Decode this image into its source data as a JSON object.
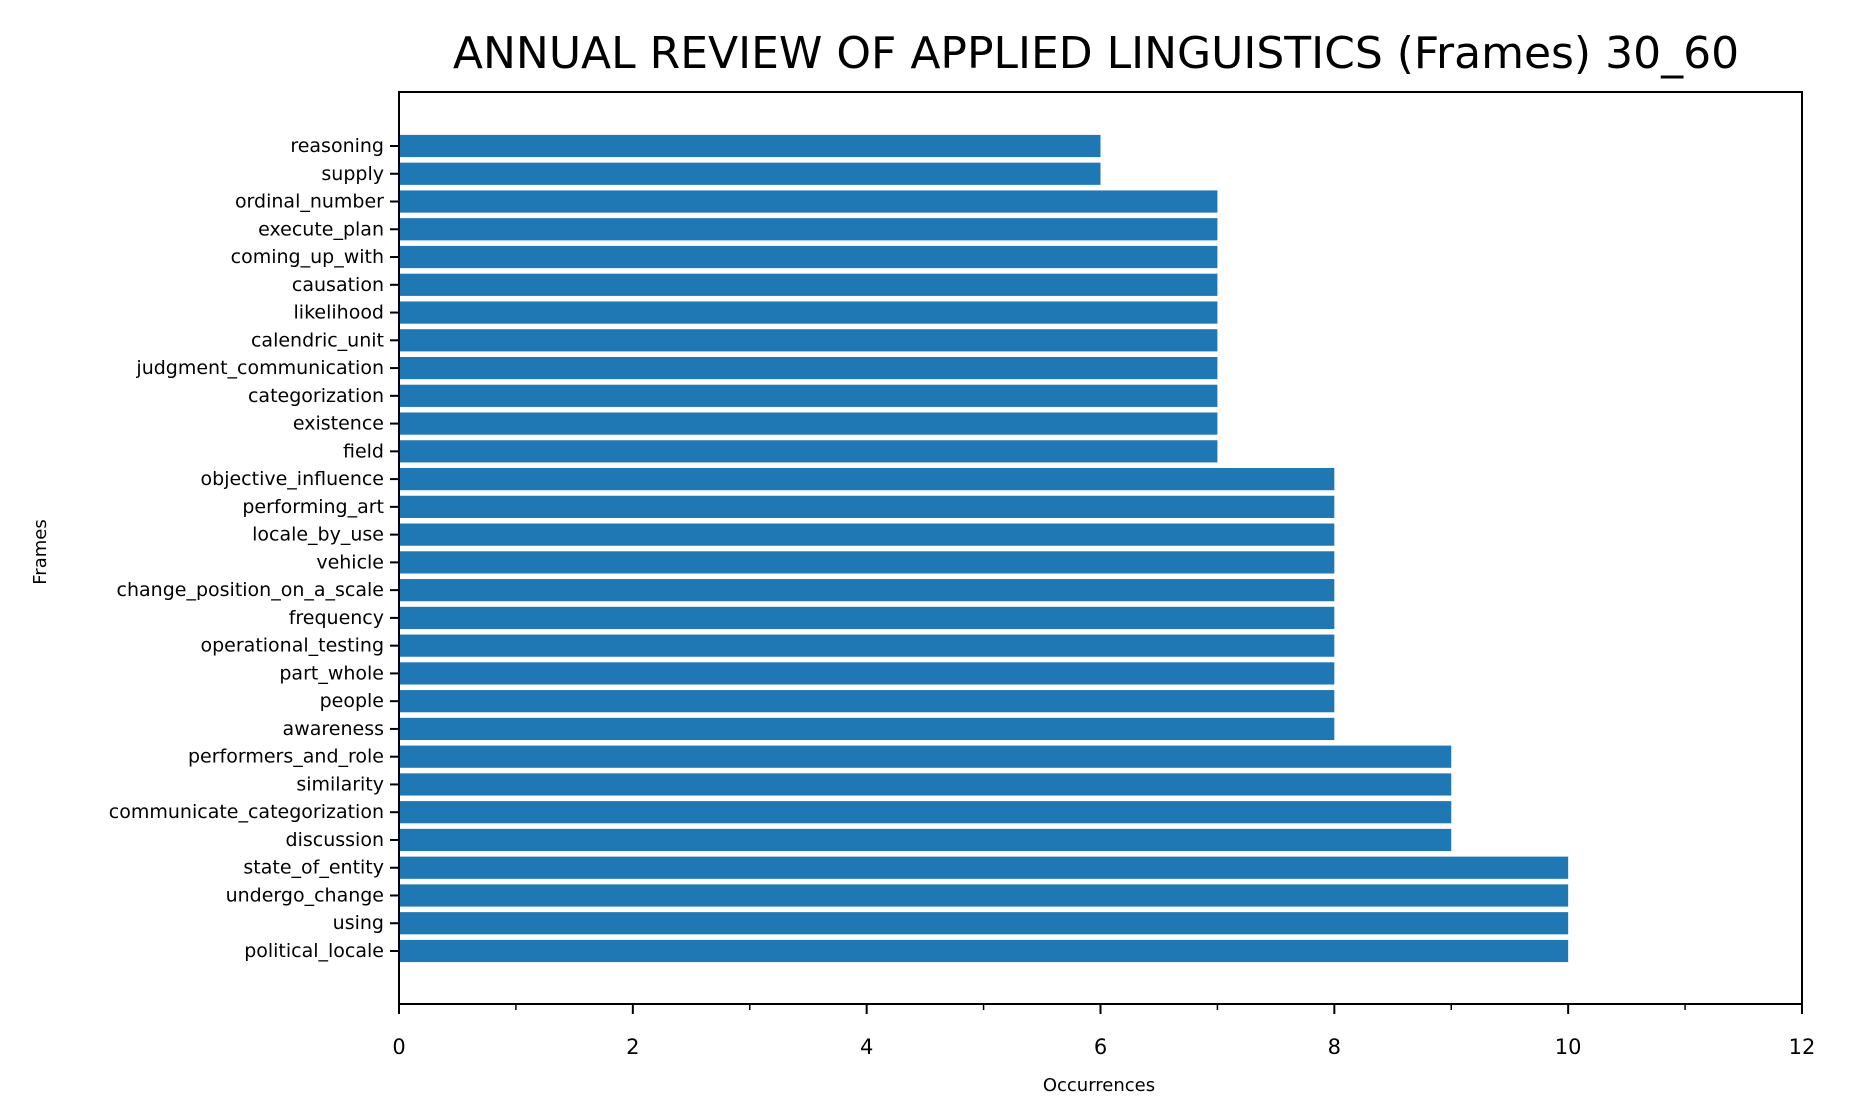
{
  "chart_data": {
    "type": "bar",
    "orientation": "horizontal",
    "title": "ANNUAL REVIEW OF APPLIED LINGUISTICS (Frames) 30_60",
    "xlabel": "Occurrences",
    "ylabel": "Frames",
    "xlim": [
      0,
      12
    ],
    "xticks": [
      0,
      2,
      4,
      6,
      8,
      10,
      12
    ],
    "grid": false,
    "bar_color": "#1f77b4",
    "categories": [
      "political_locale",
      "using",
      "undergo_change",
      "state_of_entity",
      "discussion",
      "communicate_categorization",
      "similarity",
      "performers_and_role",
      "awareness",
      "people",
      "part_whole",
      "operational_testing",
      "frequency",
      "change_position_on_a_scale",
      "vehicle",
      "locale_by_use",
      "performing_art",
      "objective_influence",
      "field",
      "existence",
      "categorization",
      "judgment_communication",
      "calendric_unit",
      "likelihood",
      "causation",
      "coming_up_with",
      "execute_plan",
      "ordinal_number",
      "supply",
      "reasoning"
    ],
    "values": [
      10,
      10,
      10,
      10,
      9,
      9,
      9,
      9,
      8,
      8,
      8,
      8,
      8,
      8,
      8,
      8,
      8,
      8,
      7,
      7,
      7,
      7,
      7,
      7,
      7,
      7,
      7,
      7,
      6,
      6
    ]
  }
}
